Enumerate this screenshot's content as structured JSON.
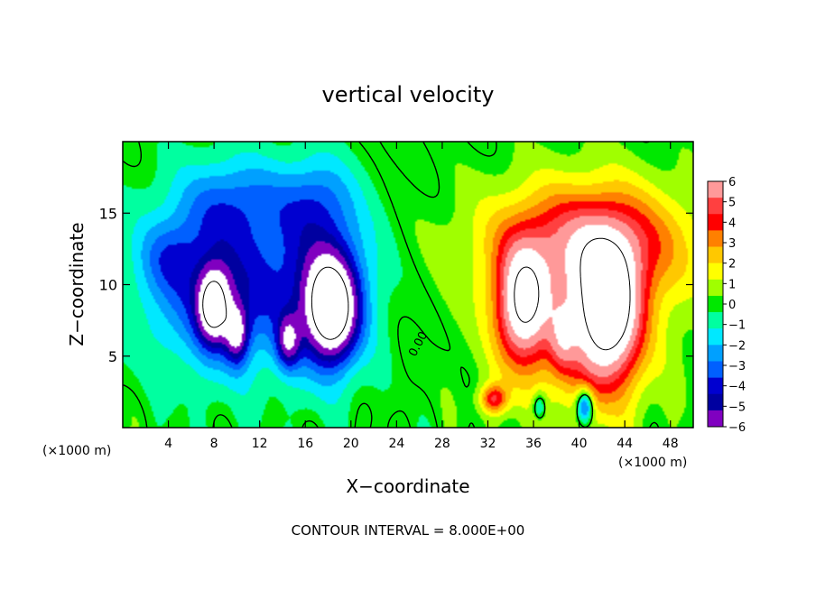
{
  "chart_data": {
    "type": "heatmap",
    "title": "vertical velocity",
    "xlabel": "X−coordinate",
    "ylabel": "Z−coordinate",
    "x_unit_left": "(×1000 m)",
    "x_unit_right": "(×1000 m)",
    "xlim": [
      0,
      50
    ],
    "ylim": [
      0,
      20
    ],
    "x_ticks": [
      4,
      8,
      12,
      16,
      20,
      24,
      28,
      32,
      36,
      40,
      44,
      48
    ],
    "y_ticks": [
      5,
      10,
      15
    ],
    "contour_label": "0.00",
    "footer": "CONTOUR INTERVAL = 8.000E+00",
    "colorbar": {
      "levels": [
        6,
        5,
        4,
        3,
        2,
        1,
        0,
        -1,
        -2,
        -3,
        -4,
        -5,
        -6
      ],
      "labels": [
        "6",
        "5",
        "4",
        "3",
        "2",
        "1",
        "0",
        "−1",
        "−2",
        "−3",
        "−4",
        "−5",
        "−6"
      ],
      "colors": [
        "#ff9999",
        "#ff4040",
        "#ff0000",
        "#ff8000",
        "#ffc800",
        "#ffff00",
        "#a0ff00",
        "#00e800",
        "#00ffa0",
        "#00e8ff",
        "#00a0ff",
        "#0060ff",
        "#0000d0",
        "#0000a0",
        "#8000c0"
      ]
    },
    "features": [
      {
        "sign": "negative",
        "center": [
          9.5,
          7.5
        ],
        "amplitude": -9,
        "desc": "downdraft"
      },
      {
        "sign": "negative",
        "center": [
          18.5,
          8.0
        ],
        "amplitude": -9,
        "desc": "downdraft"
      },
      {
        "sign": "positive",
        "center": [
          34.5,
          8.5
        ],
        "amplitude": 9,
        "desc": "updraft"
      },
      {
        "sign": "positive",
        "center": [
          42.5,
          8.0
        ],
        "amplitude": 9,
        "desc": "updraft"
      }
    ]
  }
}
